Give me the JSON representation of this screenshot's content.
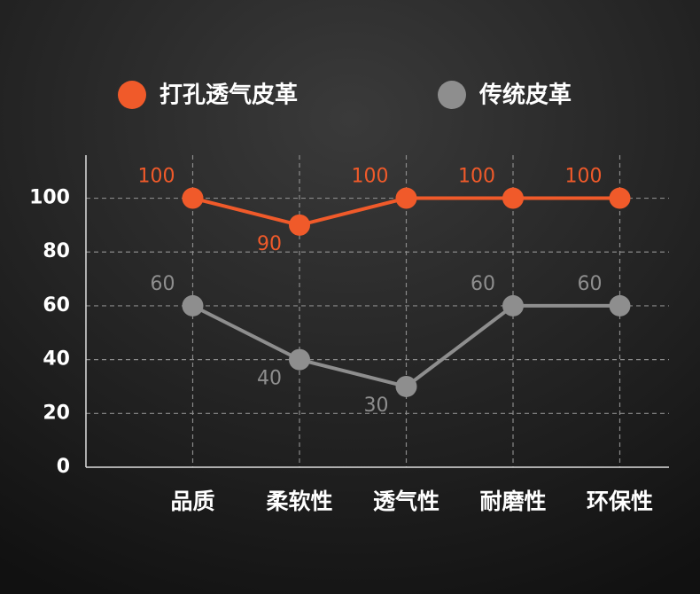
{
  "chart_data": {
    "type": "line",
    "categories": [
      "品质",
      "柔软性",
      "透气性",
      "耐磨性",
      "环保性"
    ],
    "series": [
      {
        "name": "打孔透气皮革",
        "color": "#f05a2a",
        "values": [
          100,
          90,
          100,
          100,
          100
        ]
      },
      {
        "name": "传统皮革",
        "color": "#8e8e8e",
        "values": [
          60,
          40,
          30,
          60,
          60
        ]
      }
    ],
    "ylim": [
      0,
      116
    ],
    "yticks": [
      0,
      20,
      40,
      60,
      80,
      100
    ],
    "grid": true
  }
}
